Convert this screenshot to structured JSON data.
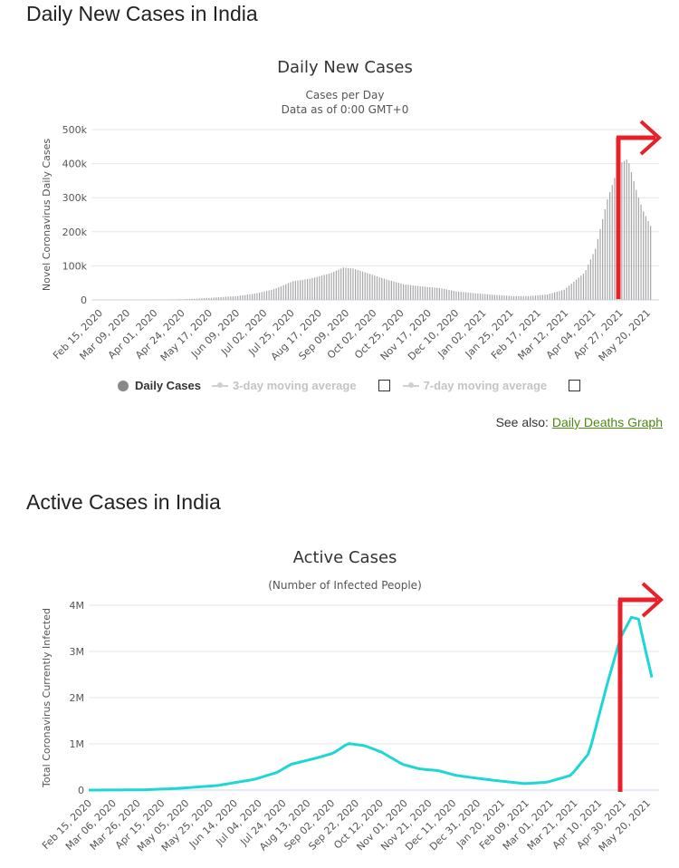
{
  "section1_title": "Daily New Cases in India",
  "section2_title": "Active Cases in India",
  "see_also": {
    "prefix": "See also:",
    "link": "Daily Deaths Graph"
  },
  "legend": {
    "daily": "Daily Cases",
    "ma3": "3-day moving average",
    "ma7": "7-day moving average"
  },
  "colors": {
    "bars": "#a6a6a6",
    "line": "#1fd6d6",
    "annotation": "#e8202a",
    "grid": "#e6e6e6"
  },
  "chart_data": [
    {
      "type": "bar",
      "title": "Daily New Cases",
      "subtitle": "Cases per Day",
      "subtitle2": "Data as of 0:00 GMT+0",
      "ylabel": "Novel Coronavirus Daily Cases",
      "ylim": [
        0,
        500000
      ],
      "yticks": [
        0,
        100000,
        200000,
        300000,
        400000,
        500000
      ],
      "ytick_labels": [
        "0",
        "100k",
        "200k",
        "300k",
        "400k",
        "500k"
      ],
      "xtick_labels": [
        "Feb 15, 2020",
        "Mar 09, 2020",
        "Apr 01, 2020",
        "Apr 24, 2020",
        "May 17, 2020",
        "Jun 09, 2020",
        "Jul 02, 2020",
        "Jul 25, 2020",
        "Aug 17, 2020",
        "Sep 09, 2020",
        "Oct 02, 2020",
        "Oct 25, 2020",
        "Nov 17, 2020",
        "Dec 10, 2020",
        "Jan 02, 2021",
        "Jan 25, 2021",
        "Feb 17, 2021",
        "Mar 12, 2021",
        "Apr 04, 2021",
        "Apr 27, 2021",
        "May 20, 2021"
      ],
      "x_range": [
        "2020-02-15",
        "2021-05-27"
      ],
      "series": [
        {
          "points": [
            [
              "2020-02-15",
              0
            ],
            [
              "2020-03-15",
              50
            ],
            [
              "2020-04-01",
              200
            ],
            [
              "2020-04-15",
              1000
            ],
            [
              "2020-05-01",
              1800
            ],
            [
              "2020-05-15",
              4000
            ],
            [
              "2020-06-01",
              8000
            ],
            [
              "2020-06-15",
              11000
            ],
            [
              "2020-07-01",
              19000
            ],
            [
              "2020-07-15",
              30000
            ],
            [
              "2020-08-01",
              55000
            ],
            [
              "2020-08-15",
              62000
            ],
            [
              "2020-09-01",
              78000
            ],
            [
              "2020-09-12",
              95000
            ],
            [
              "2020-09-20",
              92000
            ],
            [
              "2020-10-01",
              80000
            ],
            [
              "2020-10-15",
              63000
            ],
            [
              "2020-11-01",
              46000
            ],
            [
              "2020-11-15",
              40000
            ],
            [
              "2020-12-01",
              35000
            ],
            [
              "2020-12-15",
              25000
            ],
            [
              "2021-01-01",
              19000
            ],
            [
              "2021-01-15",
              15000
            ],
            [
              "2021-02-01",
              11000
            ],
            [
              "2021-02-15",
              11500
            ],
            [
              "2021-03-01",
              16000
            ],
            [
              "2021-03-15",
              30000
            ],
            [
              "2021-04-01",
              80000
            ],
            [
              "2021-04-10",
              150000
            ],
            [
              "2021-04-20",
              295000
            ],
            [
              "2021-04-30",
              400000
            ],
            [
              "2021-05-07",
              414000
            ],
            [
              "2021-05-15",
              310000
            ],
            [
              "2021-05-20",
              260000
            ],
            [
              "2021-05-27",
              210000
            ]
          ]
        }
      ]
    },
    {
      "type": "line",
      "title": "Active Cases",
      "subtitle": "(Number of Infected People)",
      "ylabel": "Total Coronavirus Currently Infected",
      "ylim": [
        0,
        4000000
      ],
      "yticks": [
        0,
        1000000,
        2000000,
        3000000,
        4000000
      ],
      "ytick_labels": [
        "0",
        "1M",
        "2M",
        "3M",
        "4M"
      ],
      "xtick_labels": [
        "Feb 15, 2020",
        "Mar 06, 2020",
        "Mar 26, 2020",
        "Apr 15, 2020",
        "May 05, 2020",
        "May 25, 2020",
        "Jun 14, 2020",
        "Jul 04, 2020",
        "Jul 24, 2020",
        "Aug 13, 2020",
        "Sep 02, 2020",
        "Sep 22, 2020",
        "Oct 12, 2020",
        "Nov 01, 2020",
        "Nov 21, 2020",
        "Dec 11, 2020",
        "Dec 31, 2020",
        "Jan 20, 2021",
        "Feb 09, 2021",
        "Mar 01, 2021",
        "Mar 21, 2021",
        "Apr 10, 2021",
        "Apr 30, 2021",
        "May 20, 2021"
      ],
      "x_range": [
        "2020-02-15",
        "2021-05-27"
      ],
      "series": [
        {
          "points": [
            [
              "2020-02-15",
              0
            ],
            [
              "2020-04-01",
              5000
            ],
            [
              "2020-05-01",
              40000
            ],
            [
              "2020-06-01",
              100000
            ],
            [
              "2020-07-01",
              230000
            ],
            [
              "2020-07-20",
              380000
            ],
            [
              "2020-08-01",
              560000
            ],
            [
              "2020-08-20",
              680000
            ],
            [
              "2020-09-05",
              800000
            ],
            [
              "2020-09-17",
              1010000
            ],
            [
              "2020-10-01",
              960000
            ],
            [
              "2020-10-15",
              820000
            ],
            [
              "2020-11-01",
              560000
            ],
            [
              "2020-11-15",
              460000
            ],
            [
              "2020-12-01",
              420000
            ],
            [
              "2020-12-15",
              320000
            ],
            [
              "2021-01-01",
              260000
            ],
            [
              "2021-01-20",
              200000
            ],
            [
              "2021-02-10",
              140000
            ],
            [
              "2021-03-01",
              170000
            ],
            [
              "2021-03-21",
              320000
            ],
            [
              "2021-04-05",
              800000
            ],
            [
              "2021-04-20",
              2300000
            ],
            [
              "2021-05-01",
              3300000
            ],
            [
              "2021-05-10",
              3740000
            ],
            [
              "2021-05-16",
              3700000
            ],
            [
              "2021-05-22",
              3000000
            ],
            [
              "2021-05-27",
              2440000
            ]
          ]
        }
      ]
    }
  ]
}
